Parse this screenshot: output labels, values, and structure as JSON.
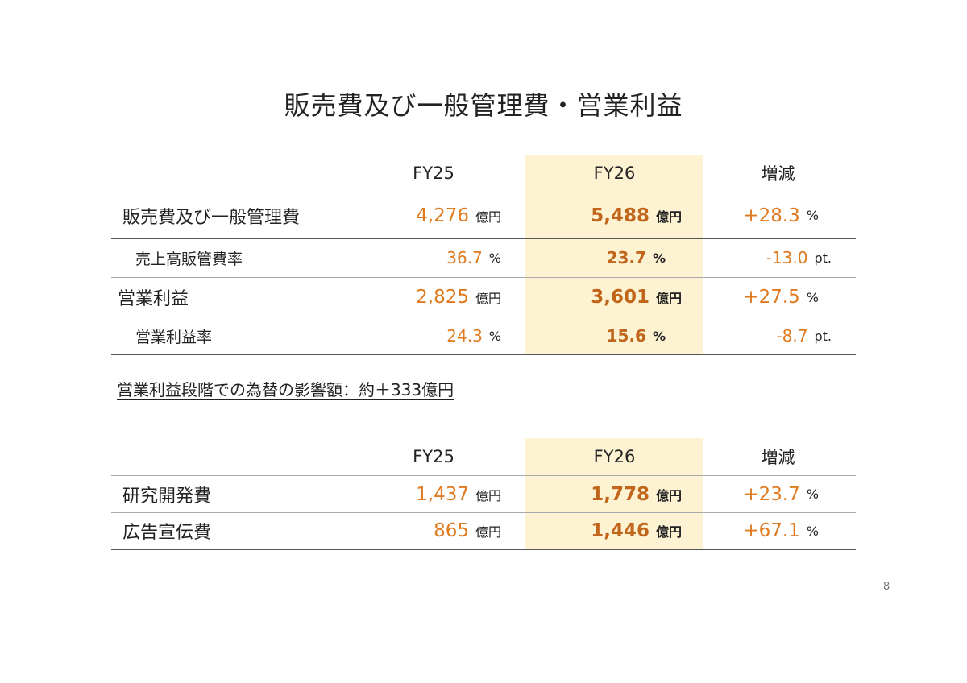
{
  "title": "販売費及び一般管理費・営業利益",
  "table1": {
    "headers": [
      "FY25",
      "FY26",
      "増減"
    ],
    "rows": [
      {
        "label": "販売費及び一般管理費",
        "fy25": "4,276",
        "fy25_unit": "億円",
        "fy26": "5,488",
        "fy26_unit": "億円",
        "change": "+28.3",
        "change_unit": "%"
      },
      {
        "label": "売上高販管費率",
        "fy25": "36.7",
        "fy25_unit": "%",
        "fy26": "23.7",
        "fy26_unit": "%",
        "change": "-13.0",
        "change_unit": "pt."
      },
      {
        "label": "営業利益",
        "fy25": "2,825",
        "fy25_unit": "億円",
        "fy26": "3,601",
        "fy26_unit": "億円",
        "change": "+27.5",
        "change_unit": "%"
      },
      {
        "label": "営業利益率",
        "fy25": "24.3",
        "fy25_unit": "%",
        "fy26": "15.6",
        "fy26_unit": "%",
        "change": "-8.7",
        "change_unit": "pt."
      }
    ]
  },
  "note": "営業利益段階での為替の影響額：約＋333億円",
  "table2": {
    "headers": [
      "FY25",
      "FY26",
      "増減"
    ],
    "rows": [
      {
        "label": "研究開発費",
        "fy25": "1,437",
        "fy25_unit": "億円",
        "fy26": "1,778",
        "fy26_unit": "億円",
        "change": "+23.7",
        "change_unit": "%"
      },
      {
        "label": "広告宣伝費",
        "fy25": "865",
        "fy25_unit": "億円",
        "fy26": "1,446",
        "fy26_unit": "億円",
        "change": "+67.1",
        "change_unit": "%"
      }
    ]
  },
  "page_number": "8",
  "colors": {
    "accent": "#e07a1f",
    "highlight": "#fdf2d2"
  }
}
